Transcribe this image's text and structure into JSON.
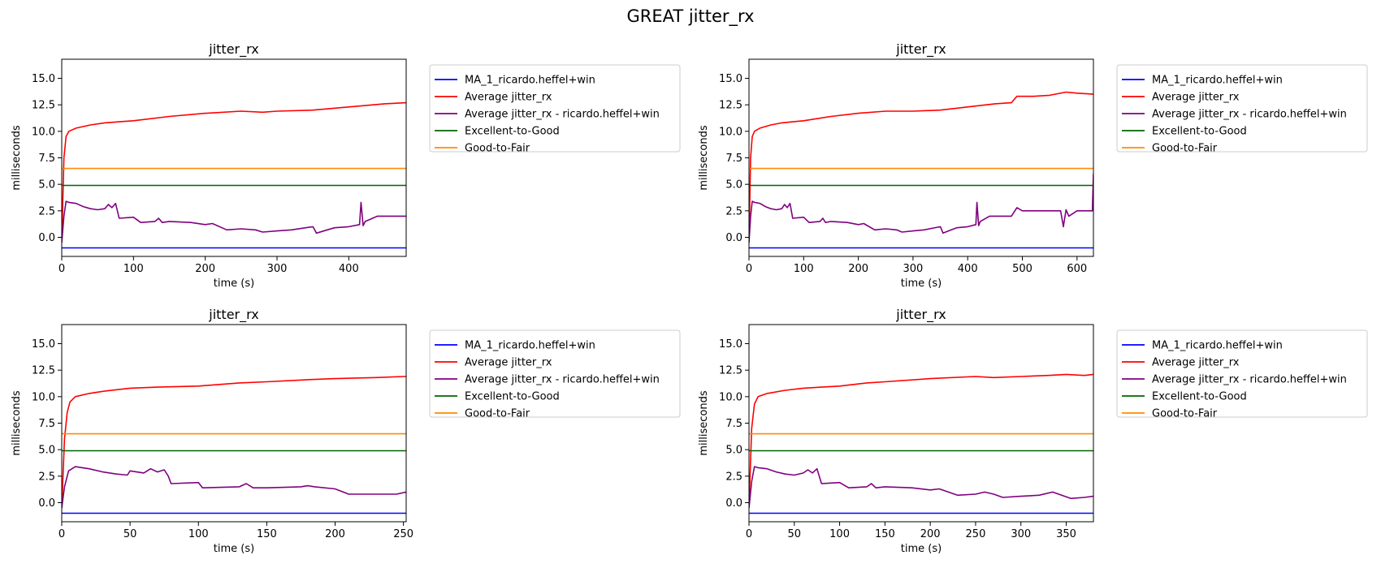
{
  "figure": {
    "suptitle": "GREAT jitter_rx"
  },
  "chart_data": [
    {
      "type": "line",
      "title": "jitter_rx",
      "xlabel": "time (s)",
      "ylabel": "milliseconds",
      "xlim": [
        0,
        480
      ],
      "ylim": [
        -1.8,
        16.8
      ],
      "xticks": [
        0,
        100,
        200,
        300,
        400
      ],
      "yticks": [
        0.0,
        2.5,
        5.0,
        7.5,
        10.0,
        12.5,
        15.0
      ],
      "grid": false,
      "legend_position": "outside-right",
      "series": [
        {
          "name": "MA_1_ricardo.heffel+win",
          "color": "#0000ff",
          "x": [
            0,
            480
          ],
          "y": [
            -1,
            -1
          ]
        },
        {
          "name": "Average jitter_rx",
          "color": "#ff0000",
          "x": [
            0,
            3,
            6,
            10,
            20,
            40,
            60,
            80,
            100,
            150,
            200,
            250,
            280,
            300,
            350,
            400,
            450,
            480
          ],
          "y": [
            -0.5,
            7.5,
            9.5,
            10.0,
            10.3,
            10.6,
            10.8,
            10.9,
            11.0,
            11.4,
            11.7,
            11.9,
            11.8,
            11.9,
            12.0,
            12.3,
            12.6,
            12.7
          ]
        },
        {
          "name": "Average jitter_rx - ricardo.heffel+win",
          "color": "#800080",
          "x": [
            0,
            3,
            6,
            10,
            20,
            30,
            40,
            50,
            60,
            65,
            70,
            75,
            80,
            100,
            110,
            130,
            135,
            140,
            150,
            180,
            200,
            210,
            230,
            250,
            270,
            280,
            300,
            320,
            350,
            355,
            370,
            380,
            400,
            415,
            417,
            420,
            423,
            440,
            480
          ],
          "y": [
            -0.5,
            2.0,
            3.4,
            3.3,
            3.2,
            2.9,
            2.7,
            2.6,
            2.7,
            3.1,
            2.8,
            3.2,
            1.8,
            1.9,
            1.4,
            1.5,
            1.8,
            1.4,
            1.5,
            1.4,
            1.2,
            1.3,
            0.7,
            0.8,
            0.7,
            0.5,
            0.6,
            0.7,
            1.0,
            0.4,
            0.7,
            0.9,
            1.0,
            1.2,
            3.3,
            1.1,
            1.5,
            2.0,
            2.0
          ]
        },
        {
          "name": "Excellent-to-Good",
          "color": "#006400",
          "x": [
            0,
            480
          ],
          "y": [
            4.9,
            4.9
          ]
        },
        {
          "name": "Good-to-Fair",
          "color": "#ff8c00",
          "x": [
            0,
            480
          ],
          "y": [
            6.5,
            6.5
          ]
        }
      ]
    },
    {
      "type": "line",
      "title": "jitter_rx",
      "xlabel": "time (s)",
      "ylabel": "milliseconds",
      "xlim": [
        0,
        630
      ],
      "ylim": [
        -1.8,
        16.8
      ],
      "xticks": [
        0,
        100,
        200,
        300,
        400,
        500,
        600
      ],
      "yticks": [
        0.0,
        2.5,
        5.0,
        7.5,
        10.0,
        12.5,
        15.0
      ],
      "grid": false,
      "legend_position": "outside-right",
      "series": [
        {
          "name": "MA_1_ricardo.heffel+win",
          "color": "#0000ff",
          "x": [
            0,
            630
          ],
          "y": [
            -1,
            -1
          ]
        },
        {
          "name": "Average jitter_rx",
          "color": "#ff0000",
          "x": [
            0,
            3,
            6,
            10,
            20,
            40,
            60,
            80,
            100,
            150,
            200,
            250,
            300,
            350,
            400,
            450,
            480,
            490,
            520,
            550,
            580,
            600,
            630
          ],
          "y": [
            -0.5,
            7.5,
            9.5,
            10.0,
            10.3,
            10.6,
            10.8,
            10.9,
            11.0,
            11.4,
            11.7,
            11.9,
            11.9,
            12.0,
            12.3,
            12.6,
            12.7,
            13.3,
            13.3,
            13.4,
            13.7,
            13.6,
            13.5
          ]
        },
        {
          "name": "Average jitter_rx - ricardo.heffel+win",
          "color": "#800080",
          "x": [
            0,
            3,
            6,
            10,
            20,
            30,
            40,
            50,
            60,
            65,
            70,
            75,
            80,
            100,
            110,
            130,
            135,
            140,
            150,
            180,
            200,
            210,
            230,
            250,
            270,
            280,
            300,
            320,
            350,
            355,
            370,
            380,
            400,
            415,
            417,
            420,
            423,
            440,
            480,
            490,
            500,
            570,
            575,
            580,
            585,
            600,
            628,
            630
          ],
          "y": [
            -0.5,
            2.0,
            3.4,
            3.3,
            3.2,
            2.9,
            2.7,
            2.6,
            2.7,
            3.1,
            2.8,
            3.2,
            1.8,
            1.9,
            1.4,
            1.5,
            1.8,
            1.4,
            1.5,
            1.4,
            1.2,
            1.3,
            0.7,
            0.8,
            0.7,
            0.5,
            0.6,
            0.7,
            1.0,
            0.4,
            0.7,
            0.9,
            1.0,
            1.2,
            3.3,
            1.1,
            1.5,
            2.0,
            2.0,
            2.8,
            2.5,
            2.5,
            1.0,
            2.6,
            2.0,
            2.5,
            2.5,
            6.0
          ]
        },
        {
          "name": "Excellent-to-Good",
          "color": "#006400",
          "x": [
            0,
            630
          ],
          "y": [
            4.9,
            4.9
          ]
        },
        {
          "name": "Good-to-Fair",
          "color": "#ff8c00",
          "x": [
            0,
            630
          ],
          "y": [
            6.5,
            6.5
          ]
        }
      ]
    },
    {
      "type": "line",
      "title": "jitter_rx",
      "xlabel": "time (s)",
      "ylabel": "milliseconds",
      "xlim": [
        0,
        252
      ],
      "ylim": [
        -1.8,
        16.8
      ],
      "xticks": [
        0,
        50,
        100,
        150,
        200,
        250
      ],
      "yticks": [
        0.0,
        2.5,
        5.0,
        7.5,
        10.0,
        12.5,
        15.0
      ],
      "grid": false,
      "legend_position": "outside-right",
      "series": [
        {
          "name": "MA_1_ricardo.heffel+win",
          "color": "#0000ff",
          "x": [
            0,
            252
          ],
          "y": [
            -1,
            -1
          ]
        },
        {
          "name": "Average jitter_rx",
          "color": "#ff0000",
          "x": [
            0,
            2,
            4,
            6,
            10,
            20,
            30,
            50,
            70,
            100,
            130,
            150,
            180,
            200,
            230,
            250,
            252
          ],
          "y": [
            -0.5,
            6.0,
            8.5,
            9.5,
            10.0,
            10.3,
            10.5,
            10.8,
            10.9,
            11.0,
            11.3,
            11.4,
            11.6,
            11.7,
            11.8,
            11.9,
            11.9
          ]
        },
        {
          "name": "Average jitter_rx - ricardo.heffel+win",
          "color": "#800080",
          "x": [
            0,
            2,
            5,
            10,
            15,
            20,
            30,
            40,
            48,
            50,
            60,
            65,
            70,
            75,
            78,
            80,
            100,
            103,
            130,
            135,
            140,
            150,
            175,
            180,
            185,
            200,
            210,
            245,
            252
          ],
          "y": [
            -0.5,
            1.5,
            3.0,
            3.4,
            3.3,
            3.2,
            2.9,
            2.7,
            2.6,
            3.0,
            2.8,
            3.2,
            2.9,
            3.1,
            2.5,
            1.8,
            1.9,
            1.4,
            1.5,
            1.8,
            1.4,
            1.4,
            1.5,
            1.6,
            1.5,
            1.3,
            0.8,
            0.8,
            1.0
          ]
        },
        {
          "name": "Excellent-to-Good",
          "color": "#006400",
          "x": [
            0,
            252
          ],
          "y": [
            4.9,
            4.9
          ]
        },
        {
          "name": "Good-to-Fair",
          "color": "#ff8c00",
          "x": [
            0,
            252
          ],
          "y": [
            6.5,
            6.5
          ]
        }
      ]
    },
    {
      "type": "line",
      "title": "jitter_rx",
      "xlabel": "time (s)",
      "ylabel": "milliseconds",
      "xlim": [
        0,
        380
      ],
      "ylim": [
        -1.8,
        16.8
      ],
      "xticks": [
        0,
        50,
        100,
        150,
        200,
        250,
        300,
        350
      ],
      "yticks": [
        0.0,
        2.5,
        5.0,
        7.5,
        10.0,
        12.5,
        15.0
      ],
      "grid": false,
      "legend_position": "outside-right",
      "series": [
        {
          "name": "MA_1_ricardo.heffel+win",
          "color": "#0000ff",
          "x": [
            0,
            380
          ],
          "y": [
            -1,
            -1
          ]
        },
        {
          "name": "Average jitter_rx",
          "color": "#ff0000",
          "x": [
            0,
            3,
            6,
            10,
            20,
            40,
            60,
            80,
            100,
            130,
            150,
            200,
            250,
            270,
            300,
            330,
            350,
            370,
            380
          ],
          "y": [
            -0.5,
            7.0,
            9.3,
            10.0,
            10.3,
            10.6,
            10.8,
            10.9,
            11.0,
            11.3,
            11.4,
            11.7,
            11.9,
            11.8,
            11.9,
            12.0,
            12.1,
            12.0,
            12.1
          ]
        },
        {
          "name": "Average jitter_rx - ricardo.heffel+win",
          "color": "#800080",
          "x": [
            0,
            3,
            6,
            10,
            20,
            30,
            40,
            50,
            60,
            65,
            70,
            75,
            80,
            100,
            110,
            130,
            135,
            140,
            150,
            180,
            200,
            210,
            230,
            250,
            260,
            270,
            280,
            300,
            320,
            335,
            355,
            370,
            380
          ],
          "y": [
            -0.5,
            2.0,
            3.4,
            3.3,
            3.2,
            2.9,
            2.7,
            2.6,
            2.8,
            3.1,
            2.8,
            3.2,
            1.8,
            1.9,
            1.4,
            1.5,
            1.8,
            1.4,
            1.5,
            1.4,
            1.2,
            1.3,
            0.7,
            0.8,
            1.0,
            0.8,
            0.5,
            0.6,
            0.7,
            1.0,
            0.4,
            0.5,
            0.6
          ]
        },
        {
          "name": "Excellent-to-Good",
          "color": "#006400",
          "x": [
            0,
            380
          ],
          "y": [
            4.9,
            4.9
          ]
        },
        {
          "name": "Good-to-Fair",
          "color": "#ff8c00",
          "x": [
            0,
            380
          ],
          "y": [
            6.5,
            6.5
          ]
        }
      ]
    }
  ]
}
